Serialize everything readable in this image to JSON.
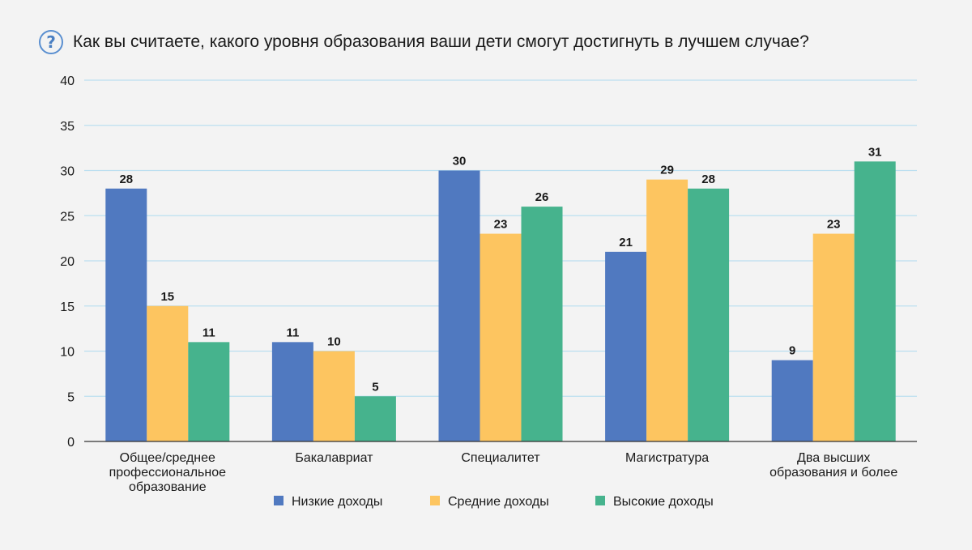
{
  "title": "Как вы считаете, какого уровня образования ваши дети смогут достигнуть в лучшем случае?",
  "icon": "question-circle-icon",
  "colors": {
    "series_low": "#5079c0",
    "series_mid": "#fdc560",
    "series_high": "#46b38d",
    "grid": "#bcdff0",
    "axis": "#333333"
  },
  "chart_data": {
    "type": "bar",
    "categories": [
      [
        "Общее/среднее",
        "профессиональное",
        "образование"
      ],
      [
        "Бакалавриат"
      ],
      [
        "Специалитет"
      ],
      [
        "Магистратура"
      ],
      [
        "Два высших",
        "образования и более"
      ]
    ],
    "series": [
      {
        "name": "Низкие доходы",
        "values": [
          28,
          11,
          30,
          21,
          9
        ]
      },
      {
        "name": "Средние доходы",
        "values": [
          15,
          10,
          23,
          29,
          23
        ]
      },
      {
        "name": "Высокие доходы",
        "values": [
          11,
          5,
          26,
          28,
          31
        ]
      }
    ],
    "ylim": [
      0,
      40
    ],
    "yticks": [
      0,
      5,
      10,
      15,
      20,
      25,
      30,
      35,
      40
    ],
    "grid": true,
    "legend": "bottom-center",
    "xlabel": "",
    "ylabel": ""
  }
}
